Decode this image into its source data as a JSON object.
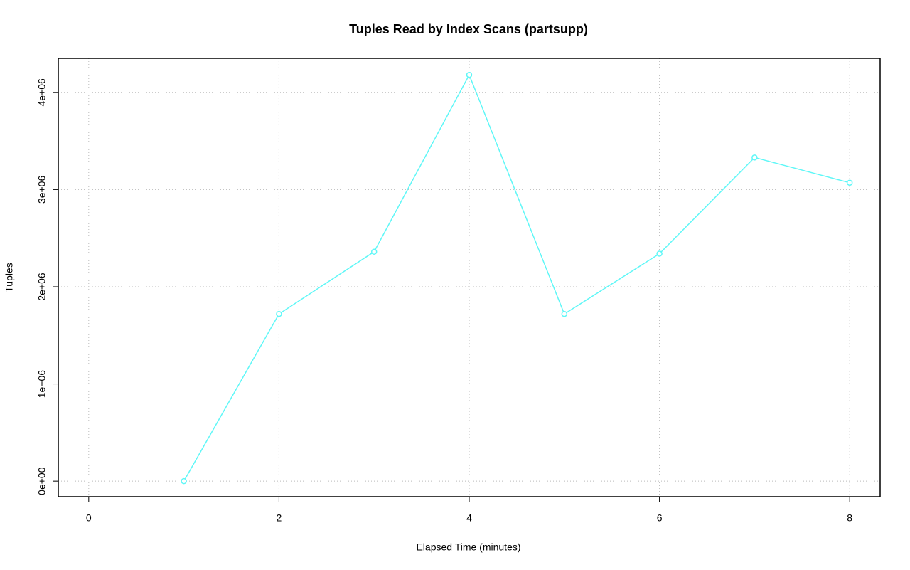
{
  "chart_data": {
    "type": "line",
    "title": "Tuples Read by Index Scans (partsupp)",
    "x_label": "Elapsed Time (minutes)",
    "y_label": "Tuples",
    "x": [
      1,
      2,
      3,
      4,
      5,
      6,
      7,
      8
    ],
    "series": [
      {
        "color": "#5ff7f7",
        "values": [
          0,
          1720000,
          2360000,
          4180000,
          1720000,
          2340000,
          3330000,
          3070000
        ]
      }
    ],
    "xlim": [
      -0.32,
      8.32
    ],
    "xticks": [
      0,
      2,
      4,
      6,
      8
    ],
    "ylim": [
      -160000,
      4350000
    ],
    "yticks": [
      {
        "value": 0,
        "label": "0e+00"
      },
      {
        "value": 1000000,
        "label": "1e+06"
      },
      {
        "value": 2000000,
        "label": "2e+06"
      },
      {
        "value": 3000000,
        "label": "3e+06"
      },
      {
        "value": 4000000,
        "label": "4e+06"
      }
    ],
    "grid": true
  }
}
